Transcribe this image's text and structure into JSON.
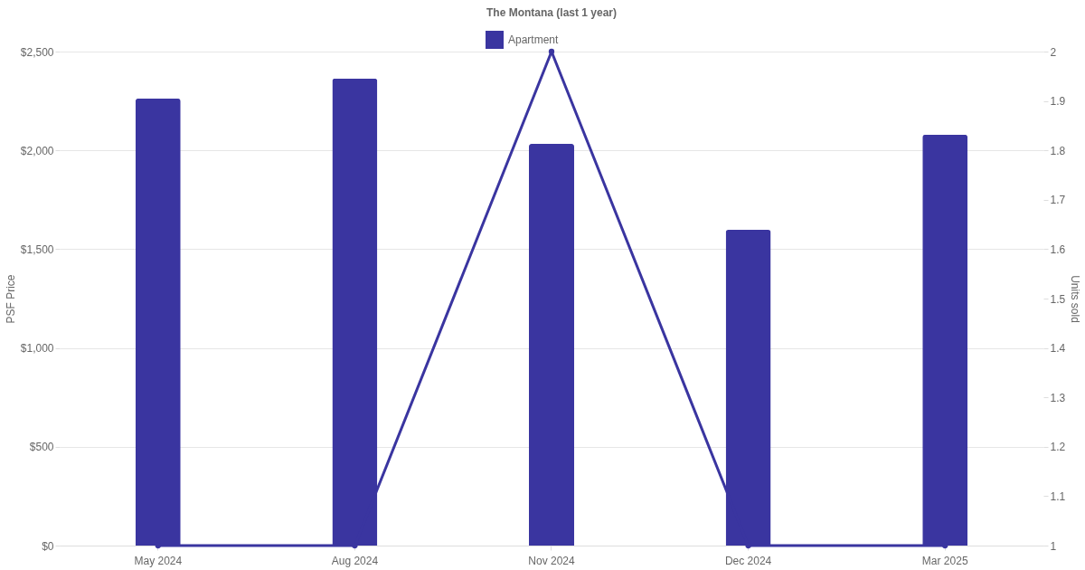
{
  "chart_data": {
    "type": "bar",
    "title": "The Montana (last 1 year)",
    "ylabel": "PSF Price",
    "y2label": "Units sold",
    "categories": [
      "May 2024",
      "Aug 2024",
      "Nov 2024",
      "Dec 2024",
      "Mar 2025"
    ],
    "series": [
      {
        "name": "Apartment",
        "color": "#3a35a0",
        "values": [
          2262,
          2364,
          2033,
          1598,
          2079
        ]
      },
      {
        "type": "line",
        "axis": "y2",
        "color": "#3a35a0",
        "marker": "circle",
        "line_style": "solid",
        "values": [
          1,
          1,
          2,
          1,
          1
        ]
      }
    ],
    "ylim": [
      0,
      2500
    ],
    "yticks": [
      {
        "value": 0,
        "label": "$0"
      },
      {
        "value": 500,
        "label": "$500"
      },
      {
        "value": 1000,
        "label": "$1,000"
      },
      {
        "value": 1500,
        "label": "$1,500"
      },
      {
        "value": 2000,
        "label": "$2,000"
      },
      {
        "value": 2500,
        "label": "$2,500"
      }
    ],
    "y2lim": [
      1,
      2
    ],
    "y2ticks": [
      1,
      1.1,
      1.2,
      1.3,
      1.4,
      1.5,
      1.6,
      1.7,
      1.8,
      1.9,
      2
    ],
    "grid": "y",
    "legend": "top"
  }
}
